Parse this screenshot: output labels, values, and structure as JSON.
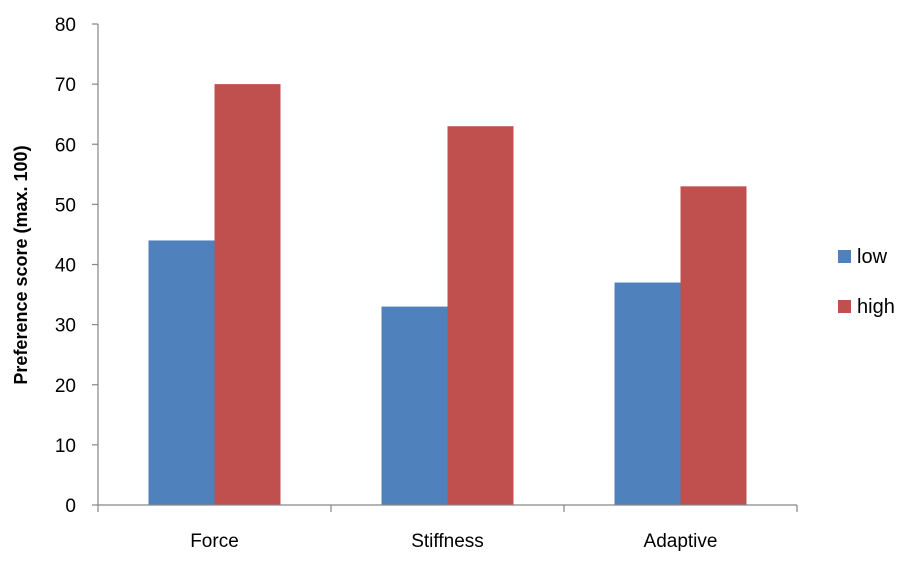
{
  "chart_data": {
    "type": "bar",
    "categories": [
      "Force",
      "Stiffness",
      "Adaptive"
    ],
    "series": [
      {
        "name": "low",
        "values": [
          44,
          33,
          37
        ],
        "color": "#4F81BD"
      },
      {
        "name": "high",
        "values": [
          70,
          63,
          53
        ],
        "color": "#C0504D"
      }
    ],
    "title": "",
    "xlabel": "",
    "ylabel": "Preference score (max. 100)",
    "ylim": [
      0,
      80
    ],
    "yticks": [
      0,
      10,
      20,
      30,
      40,
      50,
      60,
      70,
      80
    ],
    "grid": false,
    "legend_position": "right"
  }
}
